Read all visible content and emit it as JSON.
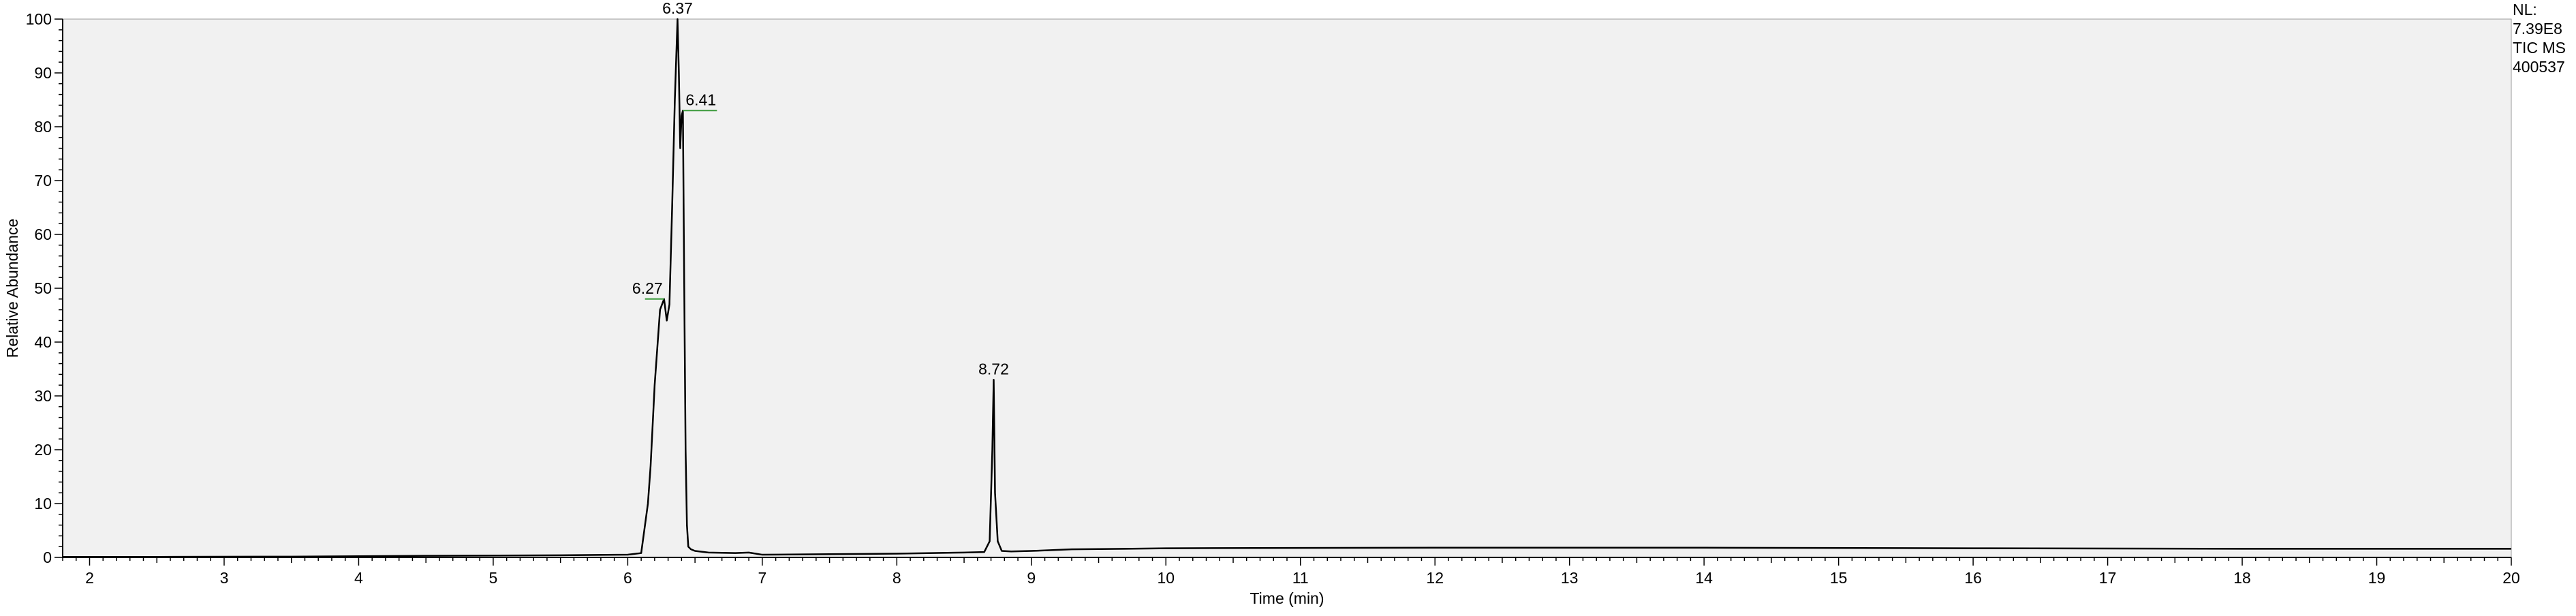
{
  "side_info": {
    "nl_label": "NL:",
    "nl_value": "7.39E8",
    "scan_filter": "TIC  MS",
    "sample": "400537"
  },
  "colors": {
    "plot_background": "#f1f1f1",
    "trace": "#000000",
    "peak_marker": "#3a9a3a"
  },
  "chart_data": {
    "type": "line",
    "title": "",
    "xlabel": "Time (min)",
    "ylabel": "Relative Abundance",
    "xlim": [
      1.8,
      20.0
    ],
    "ylim": [
      0,
      100
    ],
    "xticks": [
      2,
      3,
      4,
      5,
      6,
      7,
      8,
      9,
      10,
      11,
      12,
      13,
      14,
      15,
      16,
      17,
      18,
      19,
      20
    ],
    "yticks": [
      0,
      10,
      20,
      30,
      40,
      50,
      60,
      70,
      80,
      90,
      100
    ],
    "grid": false,
    "legend": "none",
    "series": [
      {
        "x": [
          1.8,
          2.5,
          3.5,
          4.5,
          5.5,
          6.0,
          6.1,
          6.15,
          6.17,
          6.2,
          6.24,
          6.27,
          6.29,
          6.31,
          6.33,
          6.35,
          6.37,
          6.38,
          6.39,
          6.4,
          6.41,
          6.42,
          6.43,
          6.44,
          6.45,
          6.47,
          6.5,
          6.6,
          6.8,
          6.9,
          7.0,
          7.5,
          8.0,
          8.5,
          8.65,
          8.69,
          8.71,
          8.72,
          8.73,
          8.75,
          8.78,
          8.85,
          9.0,
          9.3,
          9.7,
          10.0,
          12.0,
          14.0,
          16.0,
          18.0,
          20.0
        ],
        "y": [
          0.1,
          0.1,
          0.15,
          0.3,
          0.4,
          0.5,
          0.8,
          10,
          17,
          32,
          46,
          48,
          44,
          47,
          65,
          85,
          100,
          90,
          76,
          82,
          83,
          50,
          20,
          6,
          2,
          1.5,
          1.2,
          0.9,
          0.8,
          0.9,
          0.5,
          0.6,
          0.7,
          0.9,
          1.0,
          3,
          20,
          33,
          12,
          3,
          1.2,
          1.1,
          1.2,
          1.5,
          1.6,
          1.7,
          1.8,
          1.8,
          1.7,
          1.6,
          1.6
        ]
      }
    ],
    "annotations": [
      {
        "text": "6.27",
        "x": 6.27,
        "y": 48
      },
      {
        "text": "6.37",
        "x": 6.37,
        "y": 100
      },
      {
        "text": "6.41",
        "x": 6.41,
        "y": 83
      },
      {
        "text": "8.72",
        "x": 8.72,
        "y": 33
      }
    ]
  }
}
